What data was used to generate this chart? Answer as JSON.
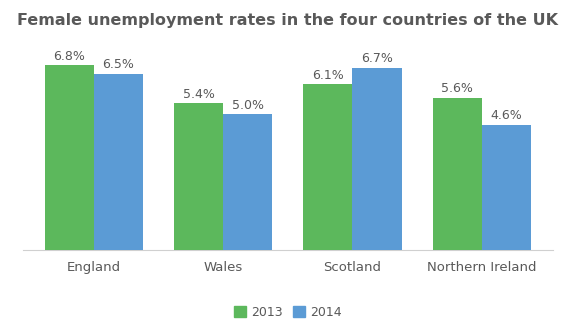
{
  "title": "Female unemployment rates in the four countries of the UK",
  "categories": [
    "England",
    "Wales",
    "Scotland",
    "Northern Ireland"
  ],
  "values_2013": [
    6.8,
    5.4,
    6.1,
    5.6
  ],
  "values_2014": [
    6.5,
    5.0,
    6.7,
    4.6
  ],
  "color_2013": "#5cb85c",
  "color_2014": "#5b9bd5",
  "ylim": [
    0,
    7.8
  ],
  "bar_width": 0.38,
  "legend_labels": [
    "2013",
    "2014"
  ],
  "title_fontsize": 11.5,
  "label_fontsize": 9,
  "tick_fontsize": 9.5,
  "annotation_fontsize": 9,
  "background_color": "#ffffff",
  "text_color": "#595959"
}
